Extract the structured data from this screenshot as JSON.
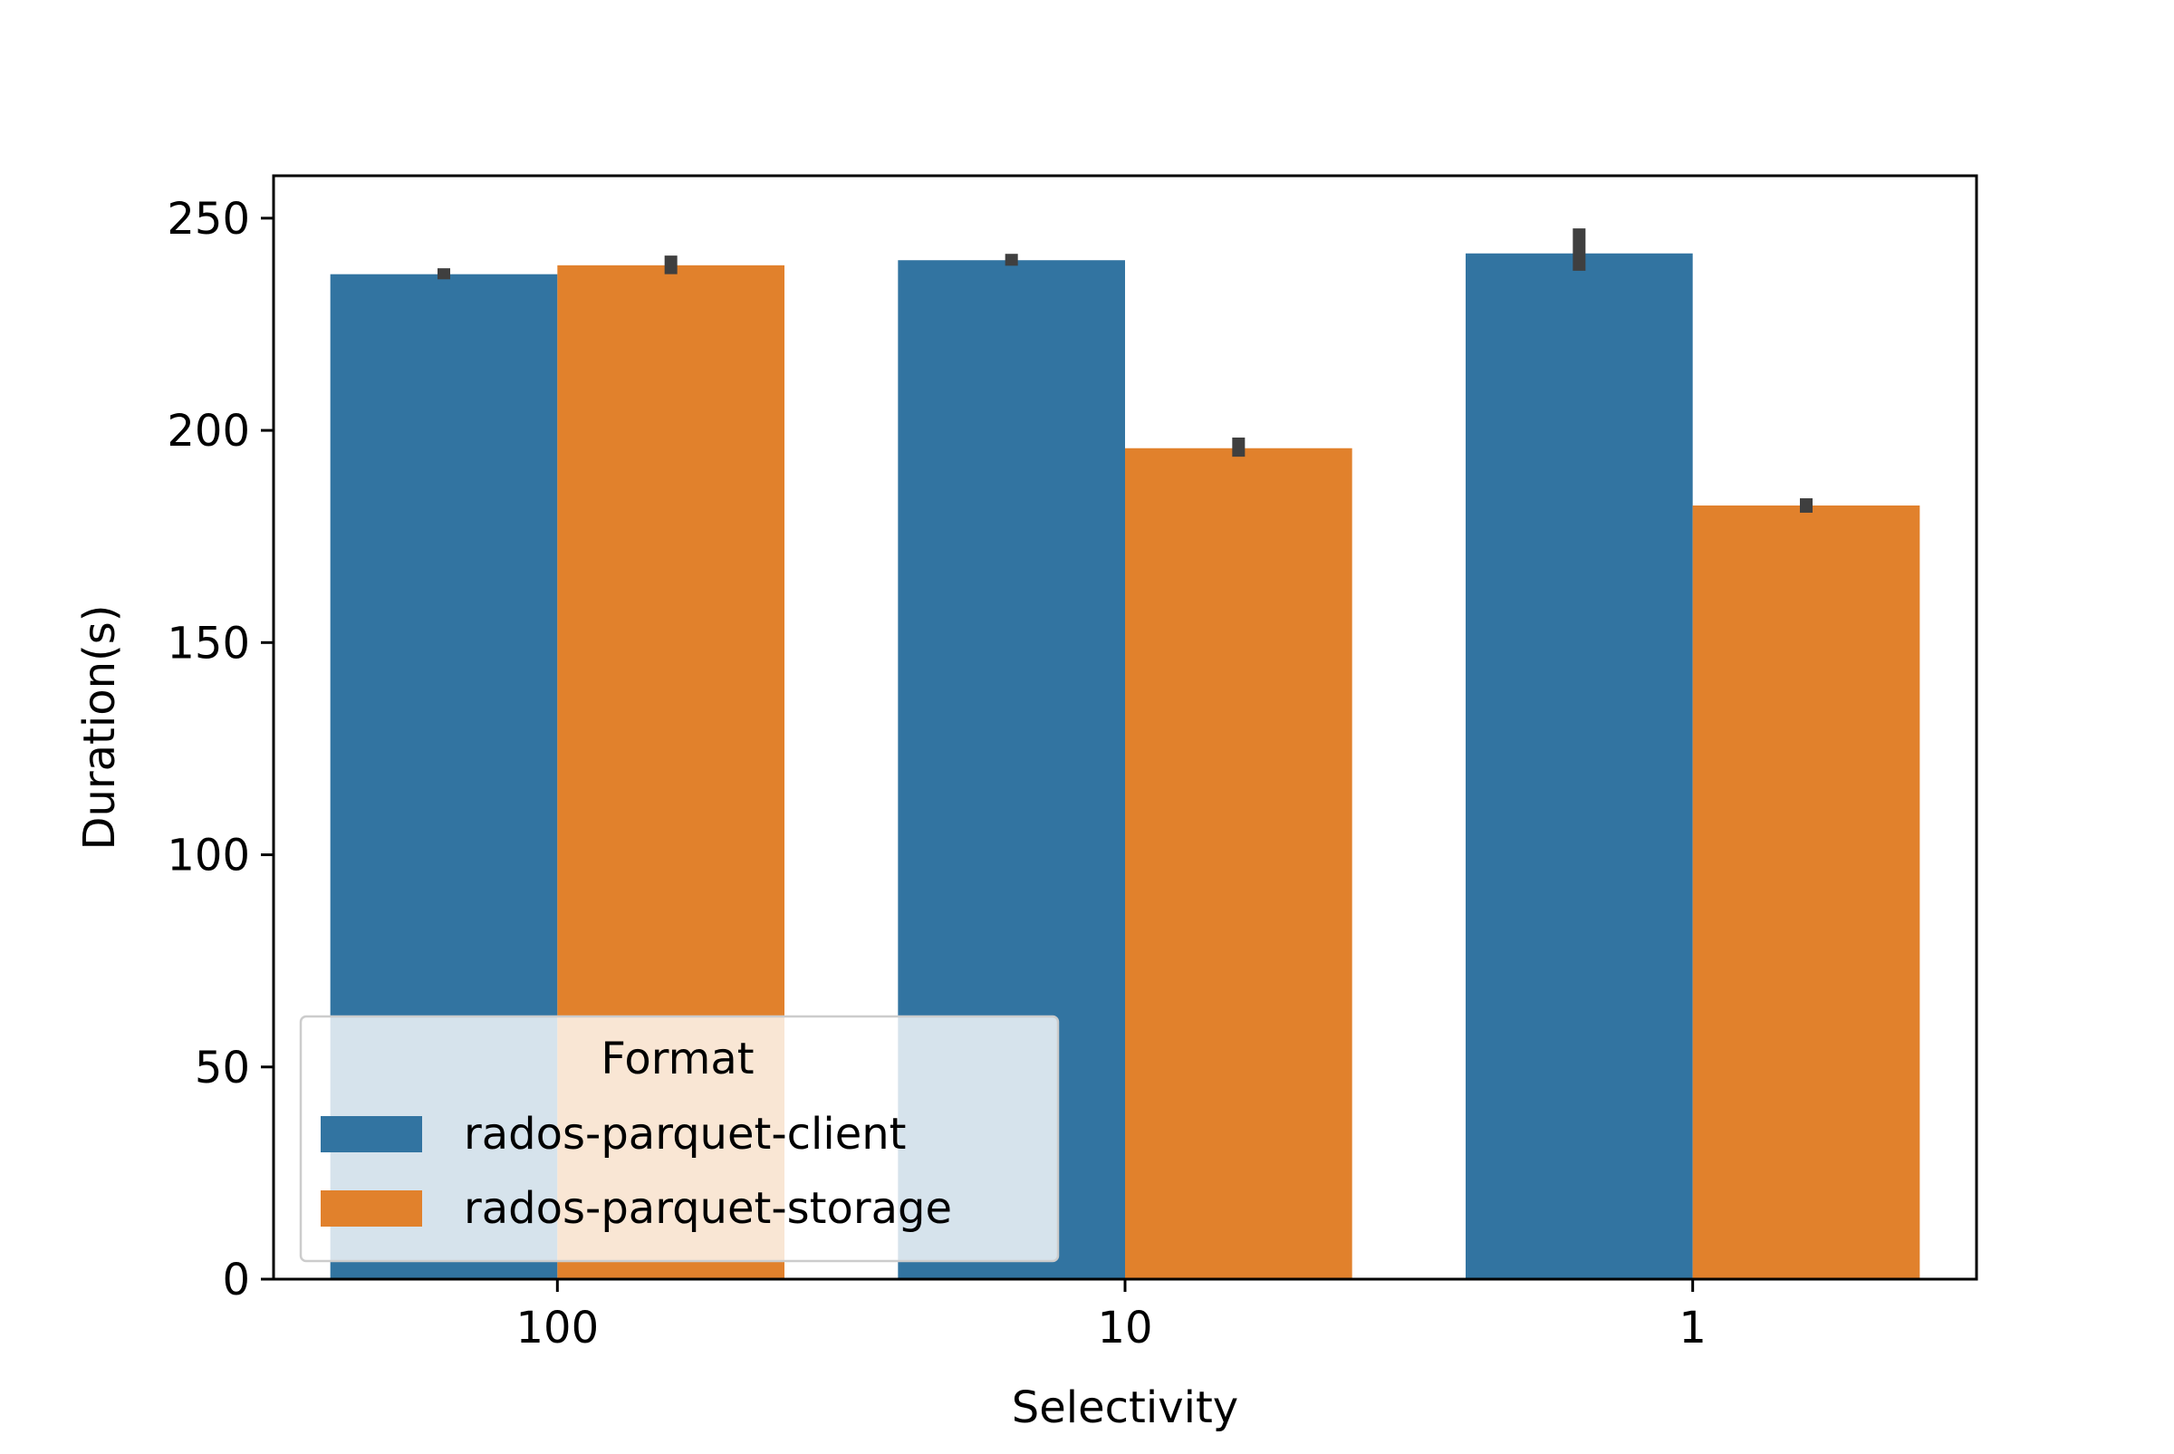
{
  "chart_data": {
    "type": "bar",
    "title": "",
    "xlabel": "Selectivity",
    "ylabel": "Duration(s)",
    "categories": [
      "100",
      "10",
      "1"
    ],
    "ylim": [
      0,
      260
    ],
    "yticks": [
      0,
      50,
      100,
      150,
      200,
      250
    ],
    "grid": false,
    "series": [
      {
        "name": "rados-parquet-client",
        "color": "#3274a1",
        "values": [
          236.8,
          240.1,
          241.7
        ],
        "error": [
          [
            235.6,
            238.2
          ],
          [
            238.8,
            241.6
          ],
          [
            237.6,
            247.6
          ]
        ]
      },
      {
        "name": "rados-parquet-storage",
        "color": "#e1812c",
        "values": [
          238.9,
          195.8,
          182.3
        ],
        "error": [
          [
            236.8,
            241.2
          ],
          [
            193.8,
            198.3
          ],
          [
            180.6,
            184.0
          ]
        ]
      }
    ],
    "errorbar_color": "#3f3f3f",
    "legend": {
      "title": "Format",
      "placement": "lower-left"
    }
  }
}
